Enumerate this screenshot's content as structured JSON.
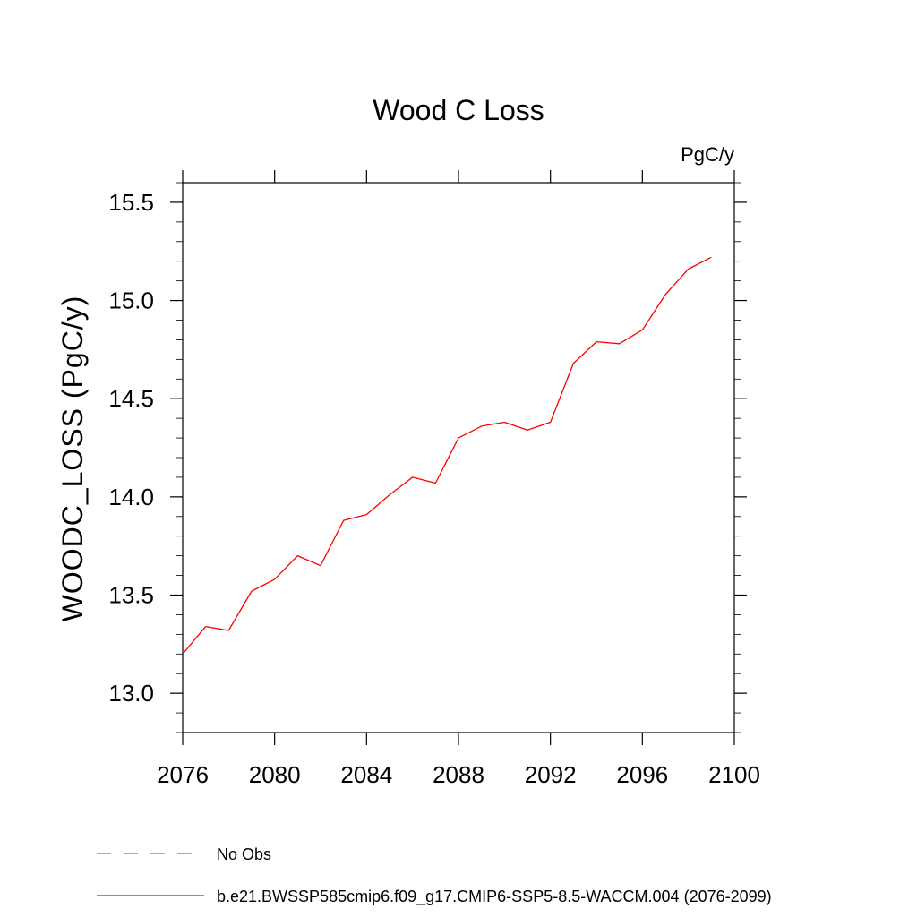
{
  "chart_data": {
    "type": "line",
    "title": "Wood C Loss",
    "units_label": "PgC/y",
    "ylabel": "WOODC_LOSS  (PgC/y)",
    "xlim": [
      2076,
      2100
    ],
    "ylim": [
      12.8,
      15.6
    ],
    "x_ticks": [
      2076,
      2080,
      2084,
      2088,
      2092,
      2096,
      2100
    ],
    "y_ticks": [
      13.0,
      13.5,
      14.0,
      14.5,
      15.0,
      15.5
    ],
    "y_tick_labels": [
      "13.0",
      "13.5",
      "14.0",
      "14.5",
      "15.0",
      "15.5"
    ],
    "grid": false,
    "series": [
      {
        "name": "b.e21.BWSSP585cmip6.f09_g17.CMIP6-SSP5-8.5-WACCM.004 (2076-2099)",
        "color": "#ff0000",
        "style": "solid",
        "x": [
          2076,
          2077,
          2078,
          2079,
          2080,
          2081,
          2082,
          2083,
          2084,
          2085,
          2086,
          2087,
          2088,
          2089,
          2090,
          2091,
          2092,
          2093,
          2094,
          2095,
          2096,
          2097,
          2098,
          2099
        ],
        "y": [
          13.2,
          13.34,
          13.32,
          13.52,
          13.58,
          13.7,
          13.65,
          13.88,
          13.91,
          14.01,
          14.1,
          14.07,
          14.3,
          14.36,
          14.38,
          14.34,
          14.38,
          14.68,
          14.79,
          14.78,
          14.85,
          15.03,
          15.16,
          15.22
        ]
      }
    ],
    "legend": [
      {
        "label": "No Obs",
        "color": "#7b68c8",
        "style": "dashed"
      },
      {
        "label": "b.e21.BWSSP585cmip6.f09_g17.CMIP6-SSP5-8.5-WACCM.004 (2076-2099)",
        "color": "#ff0000",
        "style": "solid"
      }
    ]
  }
}
